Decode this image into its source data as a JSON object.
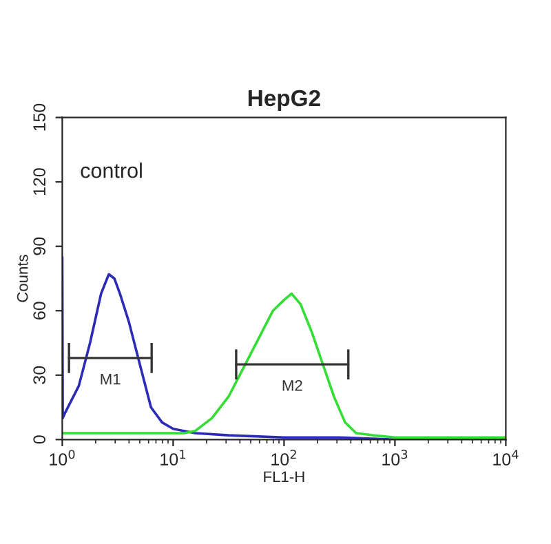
{
  "chart_data": {
    "type": "line",
    "title": "HepG2",
    "xlabel": "FL1-H",
    "ylabel": "Counts",
    "log": "x",
    "annotations": [
      "control"
    ],
    "series": [
      {
        "color": "#2b2bb8",
        "x": [
          1,
          1.01,
          1.05,
          1.41,
          1.78,
          2.24,
          2.63,
          2.95,
          3.31,
          3.98,
          5.01,
          6.31,
          7.94,
          10,
          15.8,
          31.6,
          100,
          316,
          1000,
          10000
        ],
        "values": [
          85,
          10,
          12,
          25,
          45,
          68,
          77,
          75,
          68,
          55,
          35,
          15,
          8,
          5,
          3,
          2,
          1,
          1,
          0,
          0
        ]
      },
      {
        "color": "#33dd33",
        "x": [
          1,
          3.16,
          12.6,
          15.8,
          22.4,
          31.6,
          44.7,
          63.1,
          79.4,
          100,
          117,
          141,
          178,
          224,
          282,
          355,
          447,
          631,
          1000,
          10000
        ],
        "values": [
          3,
          3,
          3,
          4,
          10,
          20,
          35,
          50,
          60,
          65,
          68,
          63,
          50,
          35,
          20,
          8,
          3,
          2,
          1,
          1
        ]
      },
      {
        "name": "M1",
        "color": "#333333",
        "x": [
          1.15,
          6.4
        ],
        "values": [
          38,
          38
        ],
        "errors": [
          7,
          7
        ]
      },
      {
        "name": "M2",
        "color": "#333333",
        "x": [
          37,
          380
        ],
        "values": [
          35,
          35
        ],
        "errors": [
          7,
          7
        ]
      }
    ],
    "xlim": [
      1,
      10000
    ],
    "xticks": [
      {
        "value": 1,
        "label": "10$^{0}$"
      },
      {
        "value": 10,
        "label": "10$^{1}$"
      },
      {
        "value": 100,
        "label": "10$^{2}$"
      },
      {
        "value": 1000,
        "label": "10$^{3}$"
      },
      {
        "value": 10000,
        "label": "10$^{4}$"
      }
    ],
    "ylim": [
      0,
      150
    ],
    "yticks": [
      0,
      30,
      60,
      90,
      120,
      150
    ],
    "grid": false,
    "legend": false
  }
}
